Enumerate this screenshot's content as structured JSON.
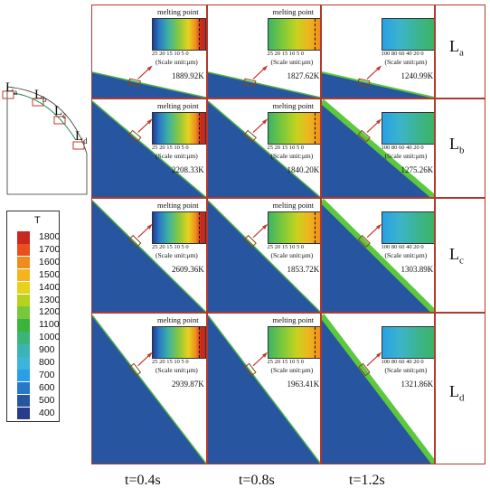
{
  "legend": {
    "title": "T",
    "items": [
      {
        "label": "1800",
        "color": "#c8281e"
      },
      {
        "label": "1700",
        "color": "#e8501e"
      },
      {
        "label": "1600",
        "color": "#f08c1e"
      },
      {
        "label": "1500",
        "color": "#f5b41e"
      },
      {
        "label": "1400",
        "color": "#e6d21e"
      },
      {
        "label": "1300",
        "color": "#b4d21e"
      },
      {
        "label": "1200",
        "color": "#78c83c"
      },
      {
        "label": "1100",
        "color": "#3cb43c"
      },
      {
        "label": "1000",
        "color": "#3cb478"
      },
      {
        "label": "900",
        "color": "#3cb4b4"
      },
      {
        "label": "800",
        "color": "#3cb4dc"
      },
      {
        "label": "700",
        "color": "#28a0e6"
      },
      {
        "label": "600",
        "color": "#2878c8"
      },
      {
        "label": "500",
        "color": "#2855a0"
      },
      {
        "label": "400",
        "color": "#283c8c"
      }
    ]
  },
  "schematic": {
    "labels": [
      {
        "main": "L",
        "sub": "a"
      },
      {
        "main": "L",
        "sub": "b"
      },
      {
        "main": "L",
        "sub": "c"
      },
      {
        "main": "L",
        "sub": "d"
      }
    ]
  },
  "rows": [
    {
      "label": {
        "main": "L",
        "sub": "a"
      }
    },
    {
      "label": {
        "main": "L",
        "sub": "b"
      }
    },
    {
      "label": {
        "main": "L",
        "sub": "c"
      }
    },
    {
      "label": {
        "main": "L",
        "sub": "d"
      }
    }
  ],
  "columns": [
    {
      "label": "t=0.4s"
    },
    {
      "label": "t=0.8s"
    },
    {
      "label": "t=1.2s"
    }
  ],
  "cells": [
    [
      {
        "temp": "1889.92K",
        "melting_label": "melting point",
        "ticks": "25  20  15  10   5    0",
        "scale": "(Scale unit:μm)",
        "has_melting": true
      },
      {
        "temp": "1827.62K",
        "melting_label": "melting point",
        "ticks": "25  20  15  10   5    0",
        "scale": "(Scale unit:μm)",
        "has_melting": true
      },
      {
        "temp": "1240.99K",
        "melting_label": "",
        "ticks": "100  80  60  40  20   0",
        "scale": "(Scale unit:μm)",
        "has_melting": false
      }
    ],
    [
      {
        "temp": "2208.33K",
        "melting_label": "melting point",
        "ticks": "25  20  15  10   5    0",
        "scale": "(Scale unit:μm)",
        "has_melting": true
      },
      {
        "temp": "1840.20K",
        "melting_label": "melting point",
        "ticks": "25  20  15  10   5    0",
        "scale": "(Scale unit:μm)",
        "has_melting": true
      },
      {
        "temp": "1275.26K",
        "melting_label": "",
        "ticks": "100  80  60  40  20   0",
        "scale": "(Scale unit:μm)",
        "has_melting": false
      }
    ],
    [
      {
        "temp": "2609.36K",
        "melting_label": "melting point",
        "ticks": "25  20  15  10   5    0",
        "scale": "(Scale unit:μm)",
        "has_melting": true
      },
      {
        "temp": "1853.72K",
        "melting_label": "melting point",
        "ticks": "25  20  15  10   5    0",
        "scale": "(Scale unit:μm)",
        "has_melting": true
      },
      {
        "temp": "1303.89K",
        "melting_label": "",
        "ticks": "100  80  60  40  20   0",
        "scale": "(Scale unit:μm)",
        "has_melting": false
      }
    ],
    [
      {
        "temp": "2939.87K",
        "melting_label": "melting point",
        "ticks": "25  20  15  10   5    0",
        "scale": "(Scale unit:μm)",
        "has_melting": true
      },
      {
        "temp": "1963.41K",
        "melting_label": "melting point",
        "ticks": "25  20  15  10   5    0",
        "scale": "(Scale unit:μm)",
        "has_melting": true
      },
      {
        "temp": "1321.86K",
        "melting_label": "",
        "ticks": "100  80  60  40  20   0",
        "scale": "(Scale unit:μm)",
        "has_melting": false
      }
    ]
  ]
}
